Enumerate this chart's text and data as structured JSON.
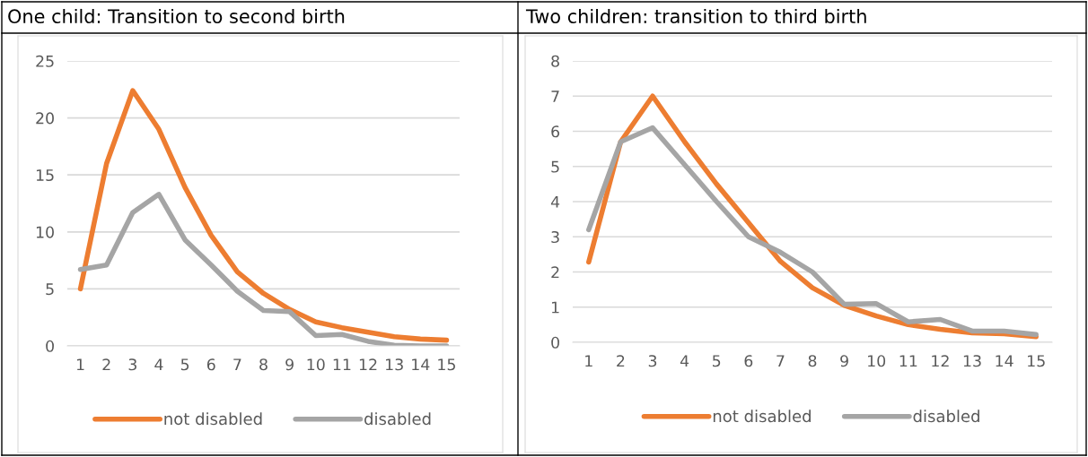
{
  "chart_data": [
    {
      "type": "line",
      "title": "One child: Transition to second birth",
      "categories": [
        "1",
        "2",
        "3",
        "4",
        "5",
        "6",
        "7",
        "8",
        "9",
        "10",
        "11",
        "12",
        "13",
        "14",
        "15"
      ],
      "series": [
        {
          "name": "not disabled",
          "color": "#ed7d31",
          "values": [
            5.0,
            16.0,
            22.4,
            19.0,
            13.9,
            9.7,
            6.5,
            4.6,
            3.2,
            2.1,
            1.6,
            1.2,
            0.8,
            0.6,
            0.5
          ]
        },
        {
          "name": "disabled",
          "color": "#a5a5a5",
          "values": [
            6.7,
            7.1,
            11.7,
            13.3,
            9.3,
            7.1,
            4.8,
            3.1,
            3.0,
            0.9,
            1.0,
            0.4,
            0.05,
            0.0,
            0.0
          ]
        }
      ],
      "ylim": [
        0,
        25
      ],
      "yticks": [
        0,
        5,
        10,
        15,
        20,
        25
      ],
      "grid": "y",
      "legend": "bottom",
      "marker": "none",
      "line_style": "solid"
    },
    {
      "type": "line",
      "title": "Two children: transition to third birth",
      "categories": [
        "1",
        "2",
        "3",
        "4",
        "5",
        "6",
        "7",
        "8",
        "9",
        "10",
        "11",
        "12",
        "13",
        "14",
        "15"
      ],
      "series": [
        {
          "name": "not disabled",
          "color": "#ed7d31",
          "values": [
            2.28,
            5.7,
            7.0,
            5.7,
            4.5,
            3.4,
            2.3,
            1.55,
            1.05,
            0.75,
            0.5,
            0.37,
            0.27,
            0.24,
            0.16
          ]
        },
        {
          "name": "disabled",
          "color": "#a5a5a5",
          "values": [
            3.2,
            5.7,
            6.1,
            5.05,
            4.0,
            3.0,
            2.56,
            2.0,
            1.08,
            1.1,
            0.58,
            0.65,
            0.32,
            0.32,
            0.22
          ]
        }
      ],
      "ylim": [
        0,
        8
      ],
      "yticks": [
        0,
        1,
        2,
        3,
        4,
        5,
        6,
        7,
        8
      ],
      "grid": "y",
      "legend": "bottom",
      "marker": "none",
      "line_style": "solid"
    }
  ]
}
